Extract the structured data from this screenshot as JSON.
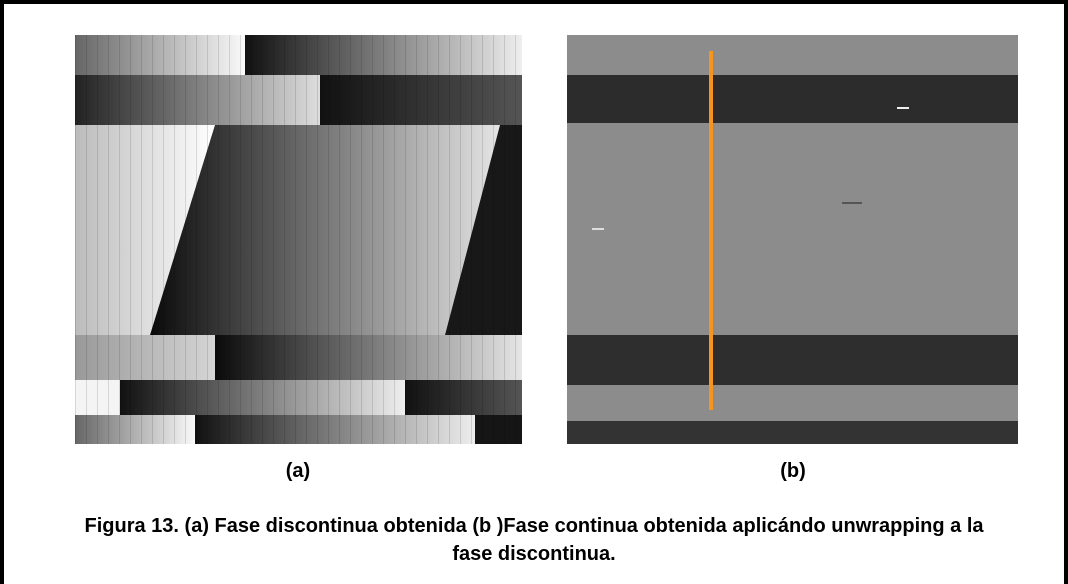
{
  "figure": {
    "panels": [
      {
        "label": "(a)"
      },
      {
        "label": "(b)"
      }
    ],
    "caption": "Figura 13. (a) Fase discontinua obtenida (b )Fase continua obtenida aplicándo unwrapping a la fase discontinua."
  }
}
